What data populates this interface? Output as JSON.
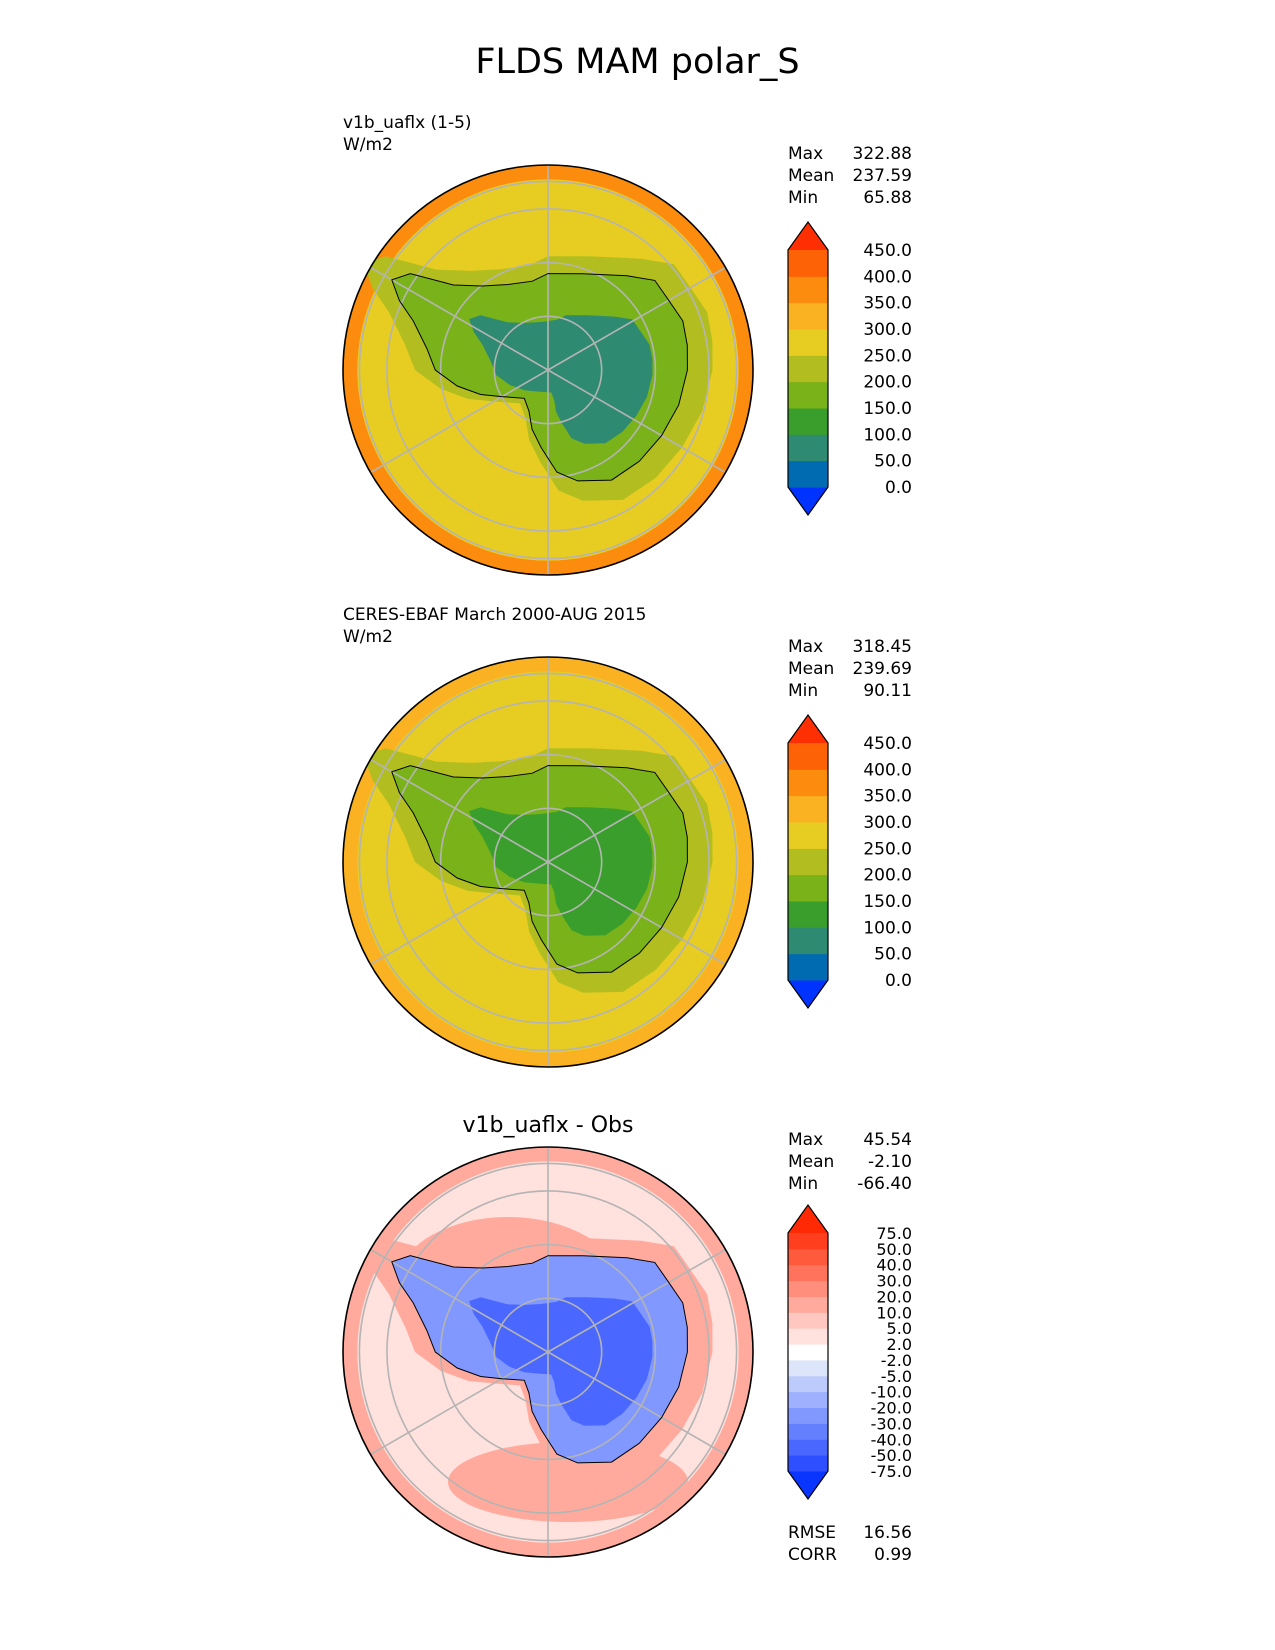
{
  "title": "FLDS MAM polar_S",
  "colors": {
    "abs_fill": [
      "#0033ff",
      "#006bb0",
      "#2e8a70",
      "#3a9e2c",
      "#79b319",
      "#b2be20",
      "#e7cc22",
      "#fbb222",
      "#fc8c0d",
      "#fd6207",
      "#ff2f04"
    ],
    "diff_fill": [
      "#0a35ff",
      "#2d4fff",
      "#4a67ff",
      "#6580ff",
      "#8098ff",
      "#9eb0ff",
      "#bccbfb",
      "#dde5fb",
      "#ffffff",
      "#ffe1dd",
      "#ffc7bf",
      "#ffaa9d",
      "#ff8e7c",
      "#ff735c",
      "#ff5a3c",
      "#ff3f1e",
      "#ff2a04"
    ],
    "grid": "#b4b4b4"
  },
  "chart_data": [
    {
      "type": "heatmap",
      "title": "v1b_uaflx (1-5)",
      "units": "W/m2",
      "projection": "polar_S",
      "stats": {
        "Max": "322.88",
        "Mean": "237.59",
        "Min": "65.88"
      },
      "colorbar_levels": [
        "0.0",
        "50.0",
        "100.0",
        "150.0",
        "200.0",
        "250.0",
        "300.0",
        "350.0",
        "400.0",
        "450.0"
      ],
      "fields": {
        "outer": 360,
        "ocean": 280,
        "coast": 230,
        "land": 175,
        "plateau": 90
      }
    },
    {
      "type": "heatmap",
      "title": "CERES-EBAF March 2000-AUG 2015",
      "units": "W/m2",
      "projection": "polar_S",
      "stats": {
        "Max": "318.45",
        "Mean": "239.69",
        "Min": "90.11"
      },
      "colorbar_levels": [
        "0.0",
        "50.0",
        "100.0",
        "150.0",
        "200.0",
        "250.0",
        "300.0",
        "350.0",
        "400.0",
        "450.0"
      ],
      "fields": {
        "outer": 330,
        "ocean": 280,
        "coast": 230,
        "land": 175,
        "plateau": 125
      }
    },
    {
      "type": "heatmap",
      "title": "v1b_uaflx - Obs",
      "units": "",
      "projection": "polar_S",
      "stats": {
        "Max": "45.54",
        "Mean": "-2.10",
        "Min": "-66.40"
      },
      "colorbar_levels": [
        "-75.0",
        "-50.0",
        "-40.0",
        "-30.0",
        "-20.0",
        "-10.0",
        "-5.0",
        "-2.0",
        "2.0",
        "5.0",
        "10.0",
        "20.0",
        "30.0",
        "40.0",
        "50.0",
        "75.0"
      ],
      "metrics": {
        "RMSE": "16.56",
        "CORR": "0.99"
      },
      "fields": {
        "outer": 12,
        "ocean": 3,
        "coast": 18,
        "land": -25,
        "plateau": -45
      }
    }
  ]
}
